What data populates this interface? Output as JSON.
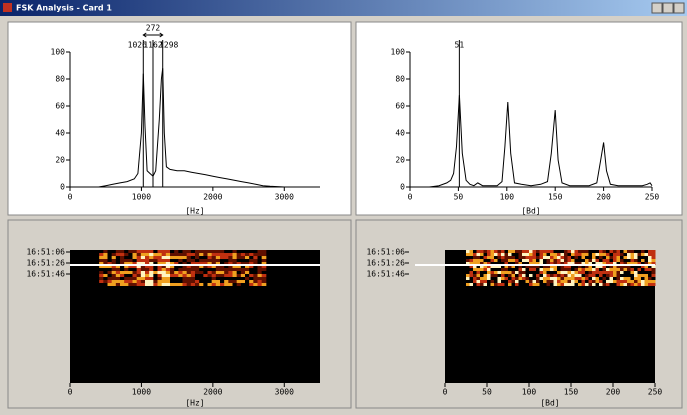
{
  "window": {
    "title": "FSK Analysis - Card 1"
  },
  "chart_data": [
    {
      "type": "line",
      "xlabel": "[Hz]",
      "color": "#000000",
      "x": [
        0,
        200,
        400,
        500,
        600,
        700,
        800,
        900,
        950,
        1000,
        1026,
        1050,
        1080,
        1120,
        1162,
        1200,
        1250,
        1280,
        1298,
        1320,
        1350,
        1400,
        1500,
        1600,
        1700,
        1800,
        1900,
        2000,
        2100,
        2200,
        2300,
        2400,
        2500,
        2600,
        2700,
        2800,
        3000,
        3500
      ],
      "values": [
        0,
        0,
        0,
        1,
        2,
        3,
        4,
        6,
        10,
        40,
        84,
        45,
        12,
        10,
        8,
        12,
        50,
        80,
        88,
        40,
        15,
        13,
        12,
        12,
        11,
        10,
        9,
        8,
        7,
        6,
        5,
        4,
        3,
        2,
        1,
        0.5,
        0,
        0
      ],
      "xlim": [
        0,
        3500
      ],
      "xticks": [
        0,
        1000,
        2000,
        3000
      ],
      "ylim": [
        0,
        100
      ],
      "yticks": [
        0,
        20,
        40,
        60,
        80,
        100
      ],
      "markers": [
        1026,
        1162,
        1298
      ],
      "shift": 272
    },
    {
      "type": "line",
      "xlabel": "[Bd]",
      "color": "#000000",
      "x": [
        0,
        20,
        30,
        38,
        42,
        45,
        48,
        51,
        54,
        58,
        62,
        66,
        70,
        75,
        80,
        90,
        95,
        98,
        101,
        104,
        108,
        115,
        125,
        135,
        142,
        146,
        150,
        153,
        157,
        165,
        175,
        185,
        193,
        197,
        200,
        203,
        207,
        215,
        230,
        240,
        245,
        248,
        250
      ],
      "values": [
        0,
        0,
        1,
        3,
        5,
        10,
        30,
        68,
        25,
        5,
        2,
        1,
        3,
        1,
        1,
        1,
        4,
        30,
        63,
        25,
        3,
        2,
        1,
        2,
        4,
        25,
        57,
        20,
        3,
        1,
        1,
        1,
        3,
        20,
        33,
        12,
        2,
        1,
        1,
        1,
        2,
        3,
        1
      ],
      "xlim": [
        0,
        250
      ],
      "xticks": [
        0,
        50,
        100,
        150,
        200,
        250
      ],
      "ylim": [
        0,
        100
      ],
      "yticks": [
        0,
        20,
        40,
        60,
        80,
        100
      ],
      "markers": [
        51
      ]
    },
    {
      "type": "waterfall",
      "xlabel": "[Hz]",
      "xlim": [
        0,
        3500
      ],
      "xticks": [
        0,
        1000,
        2000,
        3000
      ],
      "categories": [
        "16:51:06",
        "16:51:26",
        "16:51:46"
      ]
    },
    {
      "type": "waterfall",
      "xlabel": "[Bd]",
      "xlim": [
        0,
        250
      ],
      "xticks": [
        0,
        50,
        100,
        150,
        200,
        250
      ],
      "categories": [
        "16:51:06",
        "16:51:26",
        "16:51:46"
      ]
    }
  ]
}
